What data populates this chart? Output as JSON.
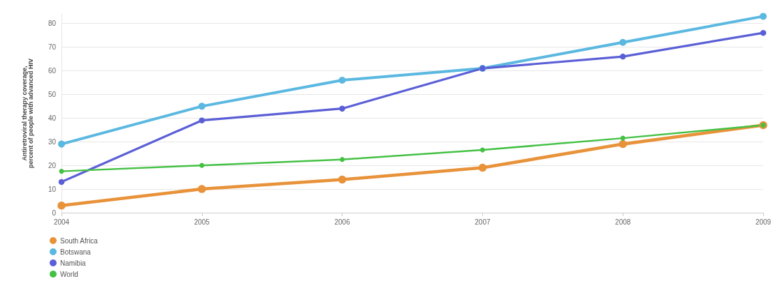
{
  "chart_data": {
    "type": "line",
    "ylabel": "Antiretroviral therapy coverage,\npercent of people with advanced HIV",
    "x": [
      2004,
      2005,
      2006,
      2007,
      2008,
      2009
    ],
    "xlim": [
      2004,
      2009
    ],
    "xticks": [
      2004,
      2005,
      2006,
      2007,
      2008,
      2009
    ],
    "ylim": [
      0,
      84
    ],
    "yticks": [
      0,
      10,
      20,
      30,
      40,
      50,
      60,
      70,
      80
    ],
    "grid": "y",
    "legend": "bottom left",
    "marker": "circle",
    "line_style": "solid",
    "series": [
      {
        "name": "South Africa",
        "color": "#e8923a",
        "values": [
          3,
          10,
          14,
          19,
          29,
          37
        ]
      },
      {
        "name": "Botswana",
        "color": "#5bb8e0",
        "values": [
          29,
          45,
          56,
          61,
          72,
          83
        ]
      },
      {
        "name": "Namibia",
        "color": "#5b5fd6",
        "values": [
          13,
          39,
          44,
          61,
          66,
          76
        ]
      },
      {
        "name": "World",
        "color": "#44c144",
        "values": [
          17.5,
          20,
          22.5,
          26.5,
          31.5,
          37
        ]
      }
    ]
  }
}
